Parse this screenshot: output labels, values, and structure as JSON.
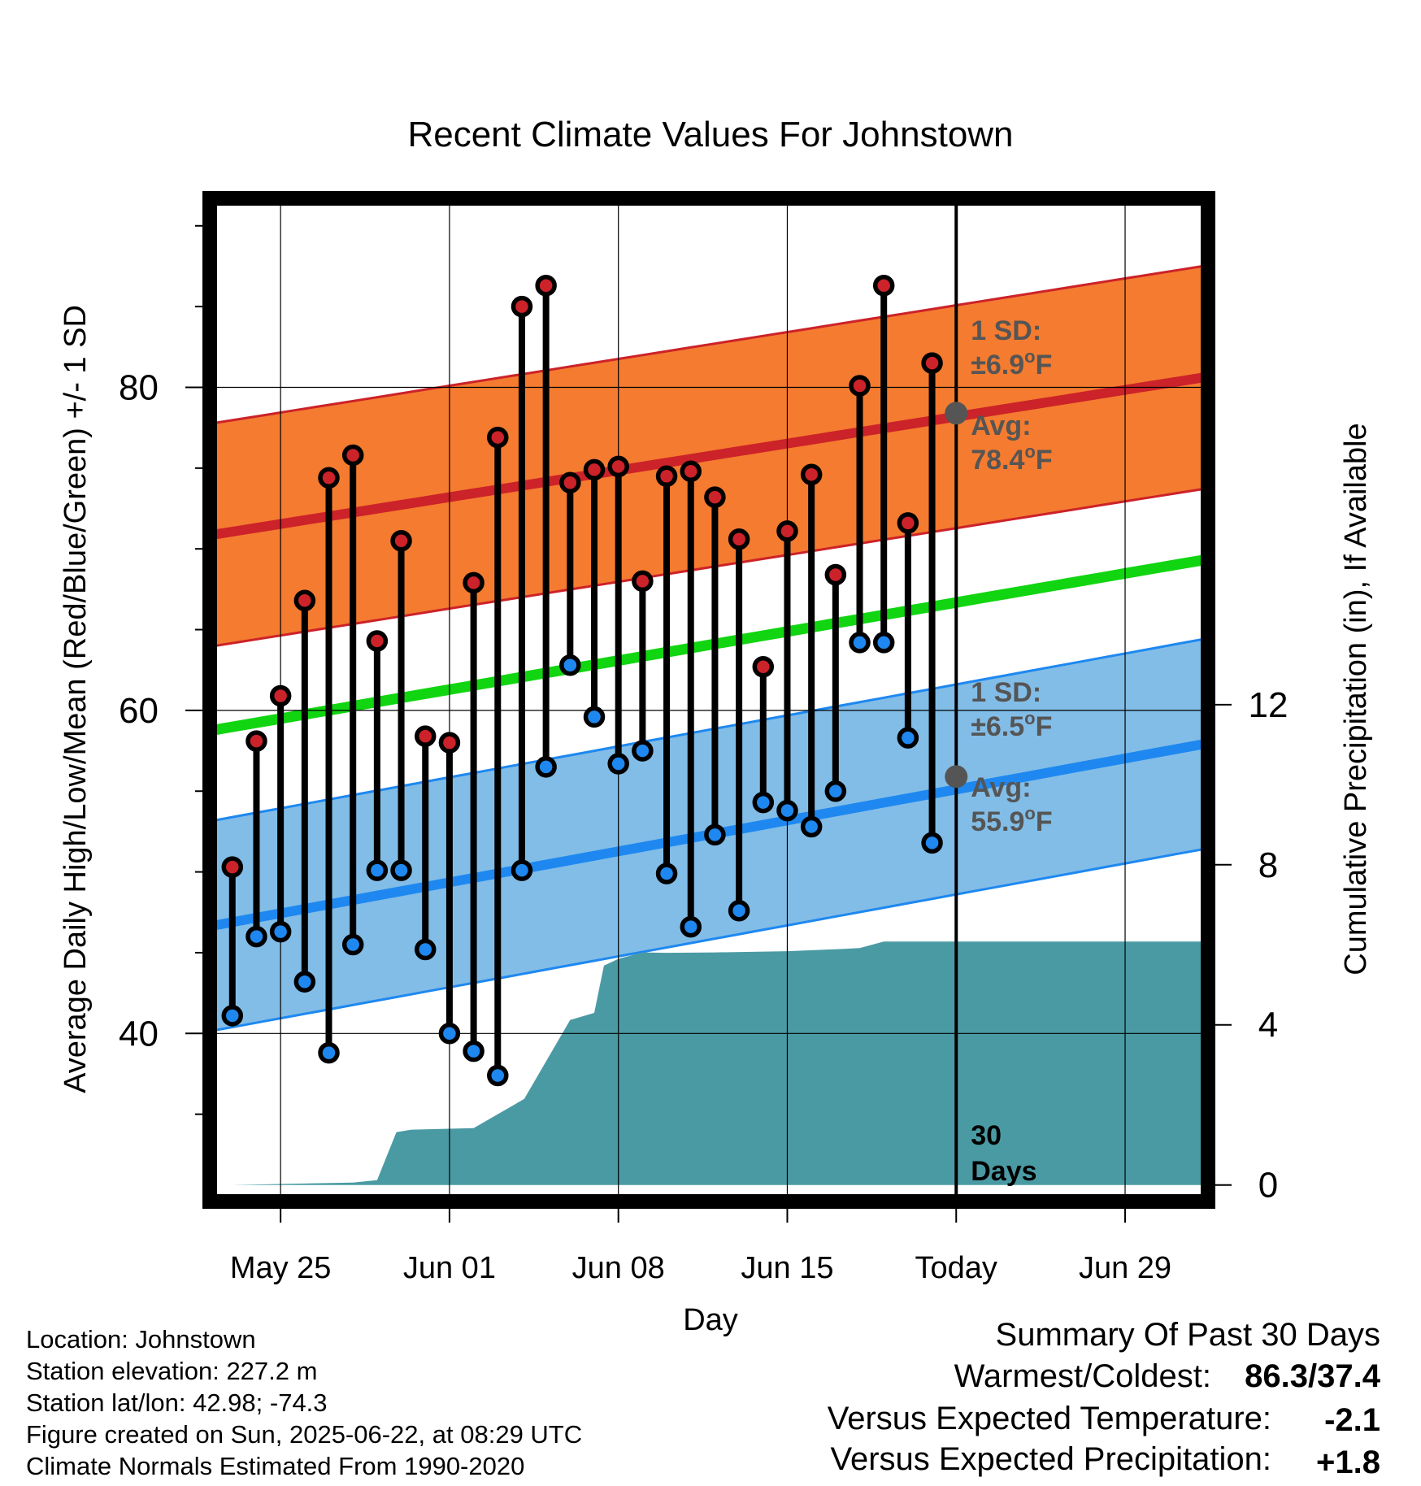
{
  "chart_data": {
    "type": "line",
    "title": "Recent Climate Values For Johnstown",
    "xlabel": "Day",
    "ylabel_left": "Average Daily High/Low/Mean (Red/Blue/Green) +/- 1 SD",
    "ylabel_right": "Cumulative Precipitation (in), If Available",
    "x_tick_labels": [
      "May 25",
      "Jun 01",
      "Jun 08",
      "Jun 15",
      "Today",
      "Jun 29"
    ],
    "x_tick_days": [
      0,
      7,
      14,
      21,
      28,
      35
    ],
    "x_range_days": [
      -2.7,
      38.2
    ],
    "y_left_ticks": [
      40,
      60,
      80
    ],
    "y_left_range": [
      30.0,
      91.7
    ],
    "y_right_ticks": [
      0,
      4,
      8,
      12
    ],
    "y_right_range": [
      -0.25,
      24.65
    ],
    "normals": {
      "high_mean": {
        "days": [
          -2.7,
          38.2
        ],
        "values": [
          70.9,
          80.6
        ]
      },
      "high_sd": 6.9,
      "low_mean": {
        "days": [
          -2.7,
          38.2
        ],
        "values": [
          46.7,
          57.9
        ]
      },
      "low_sd": 6.5,
      "mean": {
        "days": [
          -2.7,
          38.2
        ],
        "values": [
          58.8,
          69.3
        ]
      }
    },
    "observed": {
      "days": [
        -2,
        -1,
        0,
        1,
        2,
        3,
        4,
        5,
        6,
        7,
        8,
        9,
        10,
        11,
        12,
        13,
        14,
        15,
        16,
        17,
        18,
        19,
        20,
        21,
        22,
        23,
        24,
        25,
        26,
        27
      ],
      "highs": [
        50.3,
        58.1,
        60.9,
        66.8,
        74.4,
        75.8,
        64.3,
        70.5,
        58.4,
        58.0,
        67.9,
        76.9,
        85.0,
        86.3,
        74.1,
        74.9,
        75.1,
        68.0,
        74.5,
        74.8,
        73.2,
        70.6,
        62.7,
        71.1,
        74.6,
        68.4,
        80.1,
        86.3,
        71.6,
        81.5
      ],
      "lows": [
        41.1,
        46.0,
        46.3,
        43.2,
        38.8,
        45.5,
        50.1,
        50.1,
        45.2,
        40.0,
        38.9,
        37.4,
        50.1,
        56.5,
        62.8,
        59.6,
        56.7,
        57.5,
        49.9,
        46.6,
        52.3,
        47.6,
        54.3,
        53.8,
        52.8,
        55.0,
        64.2,
        64.2,
        58.3,
        51.8
      ]
    },
    "cumulative_precip": {
      "days": [
        -2,
        3,
        4,
        4.8,
        5.4,
        8,
        10.1,
        12,
        13,
        13.4,
        14,
        15,
        16,
        18,
        21,
        23,
        24,
        25,
        26,
        38.2
      ],
      "values": [
        0.0,
        0.06,
        0.12,
        1.32,
        1.38,
        1.42,
        2.15,
        4.12,
        4.3,
        5.48,
        5.65,
        5.81,
        5.8,
        5.81,
        5.84,
        5.89,
        5.92,
        6.08,
        6.08,
        6.08
      ]
    },
    "today_day": 28,
    "today_avg_high": 78.4,
    "today_avg_low": 55.9,
    "annotations": {
      "high_sd_label": "1 SD:",
      "high_sd_value": "±6.9",
      "high_avg_label": "Avg:",
      "high_avg_value": "78.4",
      "low_sd_label": "1 SD:",
      "low_sd_value": "±6.5",
      "low_avg_label": "Avg:",
      "low_avg_value": "55.9",
      "degree_unit": "o",
      "fahrenheit": "F",
      "days_count": "30",
      "days_word": "Days"
    },
    "grid": true,
    "colors": {
      "high_band": "#f47b2f",
      "high_mean_line": "#cc2229",
      "low_band": "#82bde7",
      "low_mean_line": "#1e88f0",
      "mean_line": "#11d511",
      "precip": "#4a9aa4",
      "high_dot": "#cc2229",
      "low_dot": "#1e88f0",
      "today_dot": "#555555",
      "annotation_text": "#555555"
    }
  },
  "footer": {
    "location": "Location: Johnstown",
    "elevation": "Station elevation: 227.2 m",
    "latlon": "Station lat/lon: 42.98; -74.3",
    "created": "Figure created on Sun, 2025-06-22, at 08:29 UTC",
    "normals": "Climate Normals Estimated From 1990-2020"
  },
  "summary": {
    "title": "Summary Of Past 30 Days",
    "warmest_label": "Warmest/Coldest:",
    "warmest_value": "86.3/37.4",
    "temp_label": "Versus Expected Temperature:",
    "temp_value": "-2.1",
    "temp_color": "#1e88f0",
    "precip_label": "Versus Expected Precipitation:",
    "precip_value": "+1.8",
    "precip_color": "#11cc11"
  }
}
